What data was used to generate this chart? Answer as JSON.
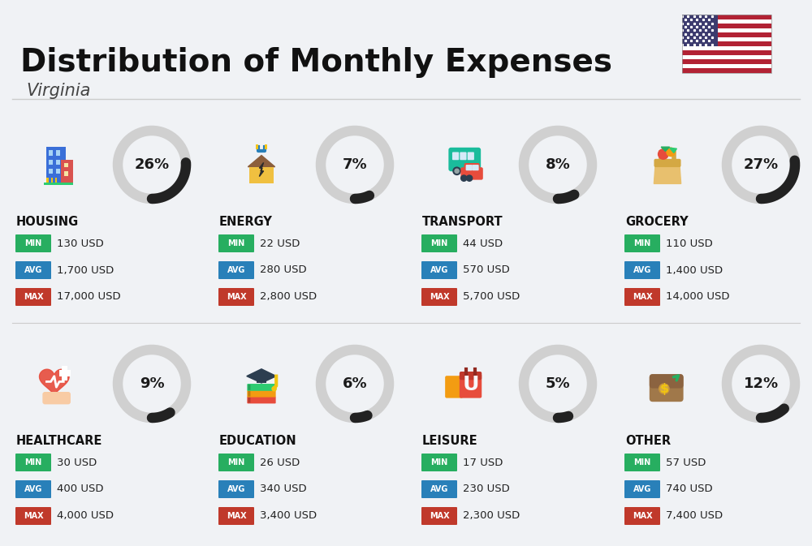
{
  "title": "Distribution of Monthly Expenses",
  "subtitle": "Virginia",
  "background_color": "#f0f2f5",
  "categories": [
    {
      "name": "HOUSING",
      "percent": 26,
      "min": "130 USD",
      "avg": "1,700 USD",
      "max": "17,000 USD",
      "row": 0,
      "col": 0
    },
    {
      "name": "ENERGY",
      "percent": 7,
      "min": "22 USD",
      "avg": "280 USD",
      "max": "2,800 USD",
      "row": 0,
      "col": 1
    },
    {
      "name": "TRANSPORT",
      "percent": 8,
      "min": "44 USD",
      "avg": "570 USD",
      "max": "5,700 USD",
      "row": 0,
      "col": 2
    },
    {
      "name": "GROCERY",
      "percent": 27,
      "min": "110 USD",
      "avg": "1,400 USD",
      "max": "14,000 USD",
      "row": 0,
      "col": 3
    },
    {
      "name": "HEALTHCARE",
      "percent": 9,
      "min": "30 USD",
      "avg": "400 USD",
      "max": "4,000 USD",
      "row": 1,
      "col": 0
    },
    {
      "name": "EDUCATION",
      "percent": 6,
      "min": "26 USD",
      "avg": "340 USD",
      "max": "3,400 USD",
      "row": 1,
      "col": 1
    },
    {
      "name": "LEISURE",
      "percent": 5,
      "min": "17 USD",
      "avg": "230 USD",
      "max": "2,300 USD",
      "row": 1,
      "col": 2
    },
    {
      "name": "OTHER",
      "percent": 12,
      "min": "57 USD",
      "avg": "740 USD",
      "max": "7,400 USD",
      "row": 1,
      "col": 3
    }
  ],
  "min_color": "#27ae60",
  "avg_color": "#2980b9",
  "max_color": "#c0392b",
  "label_color_text": "#ffffff",
  "arc_fg_color": "#222222",
  "arc_bg_color": "#d0d0d0",
  "category_name_color": "#111111",
  "value_text_color": "#222222",
  "divider_color": "#cccccc"
}
